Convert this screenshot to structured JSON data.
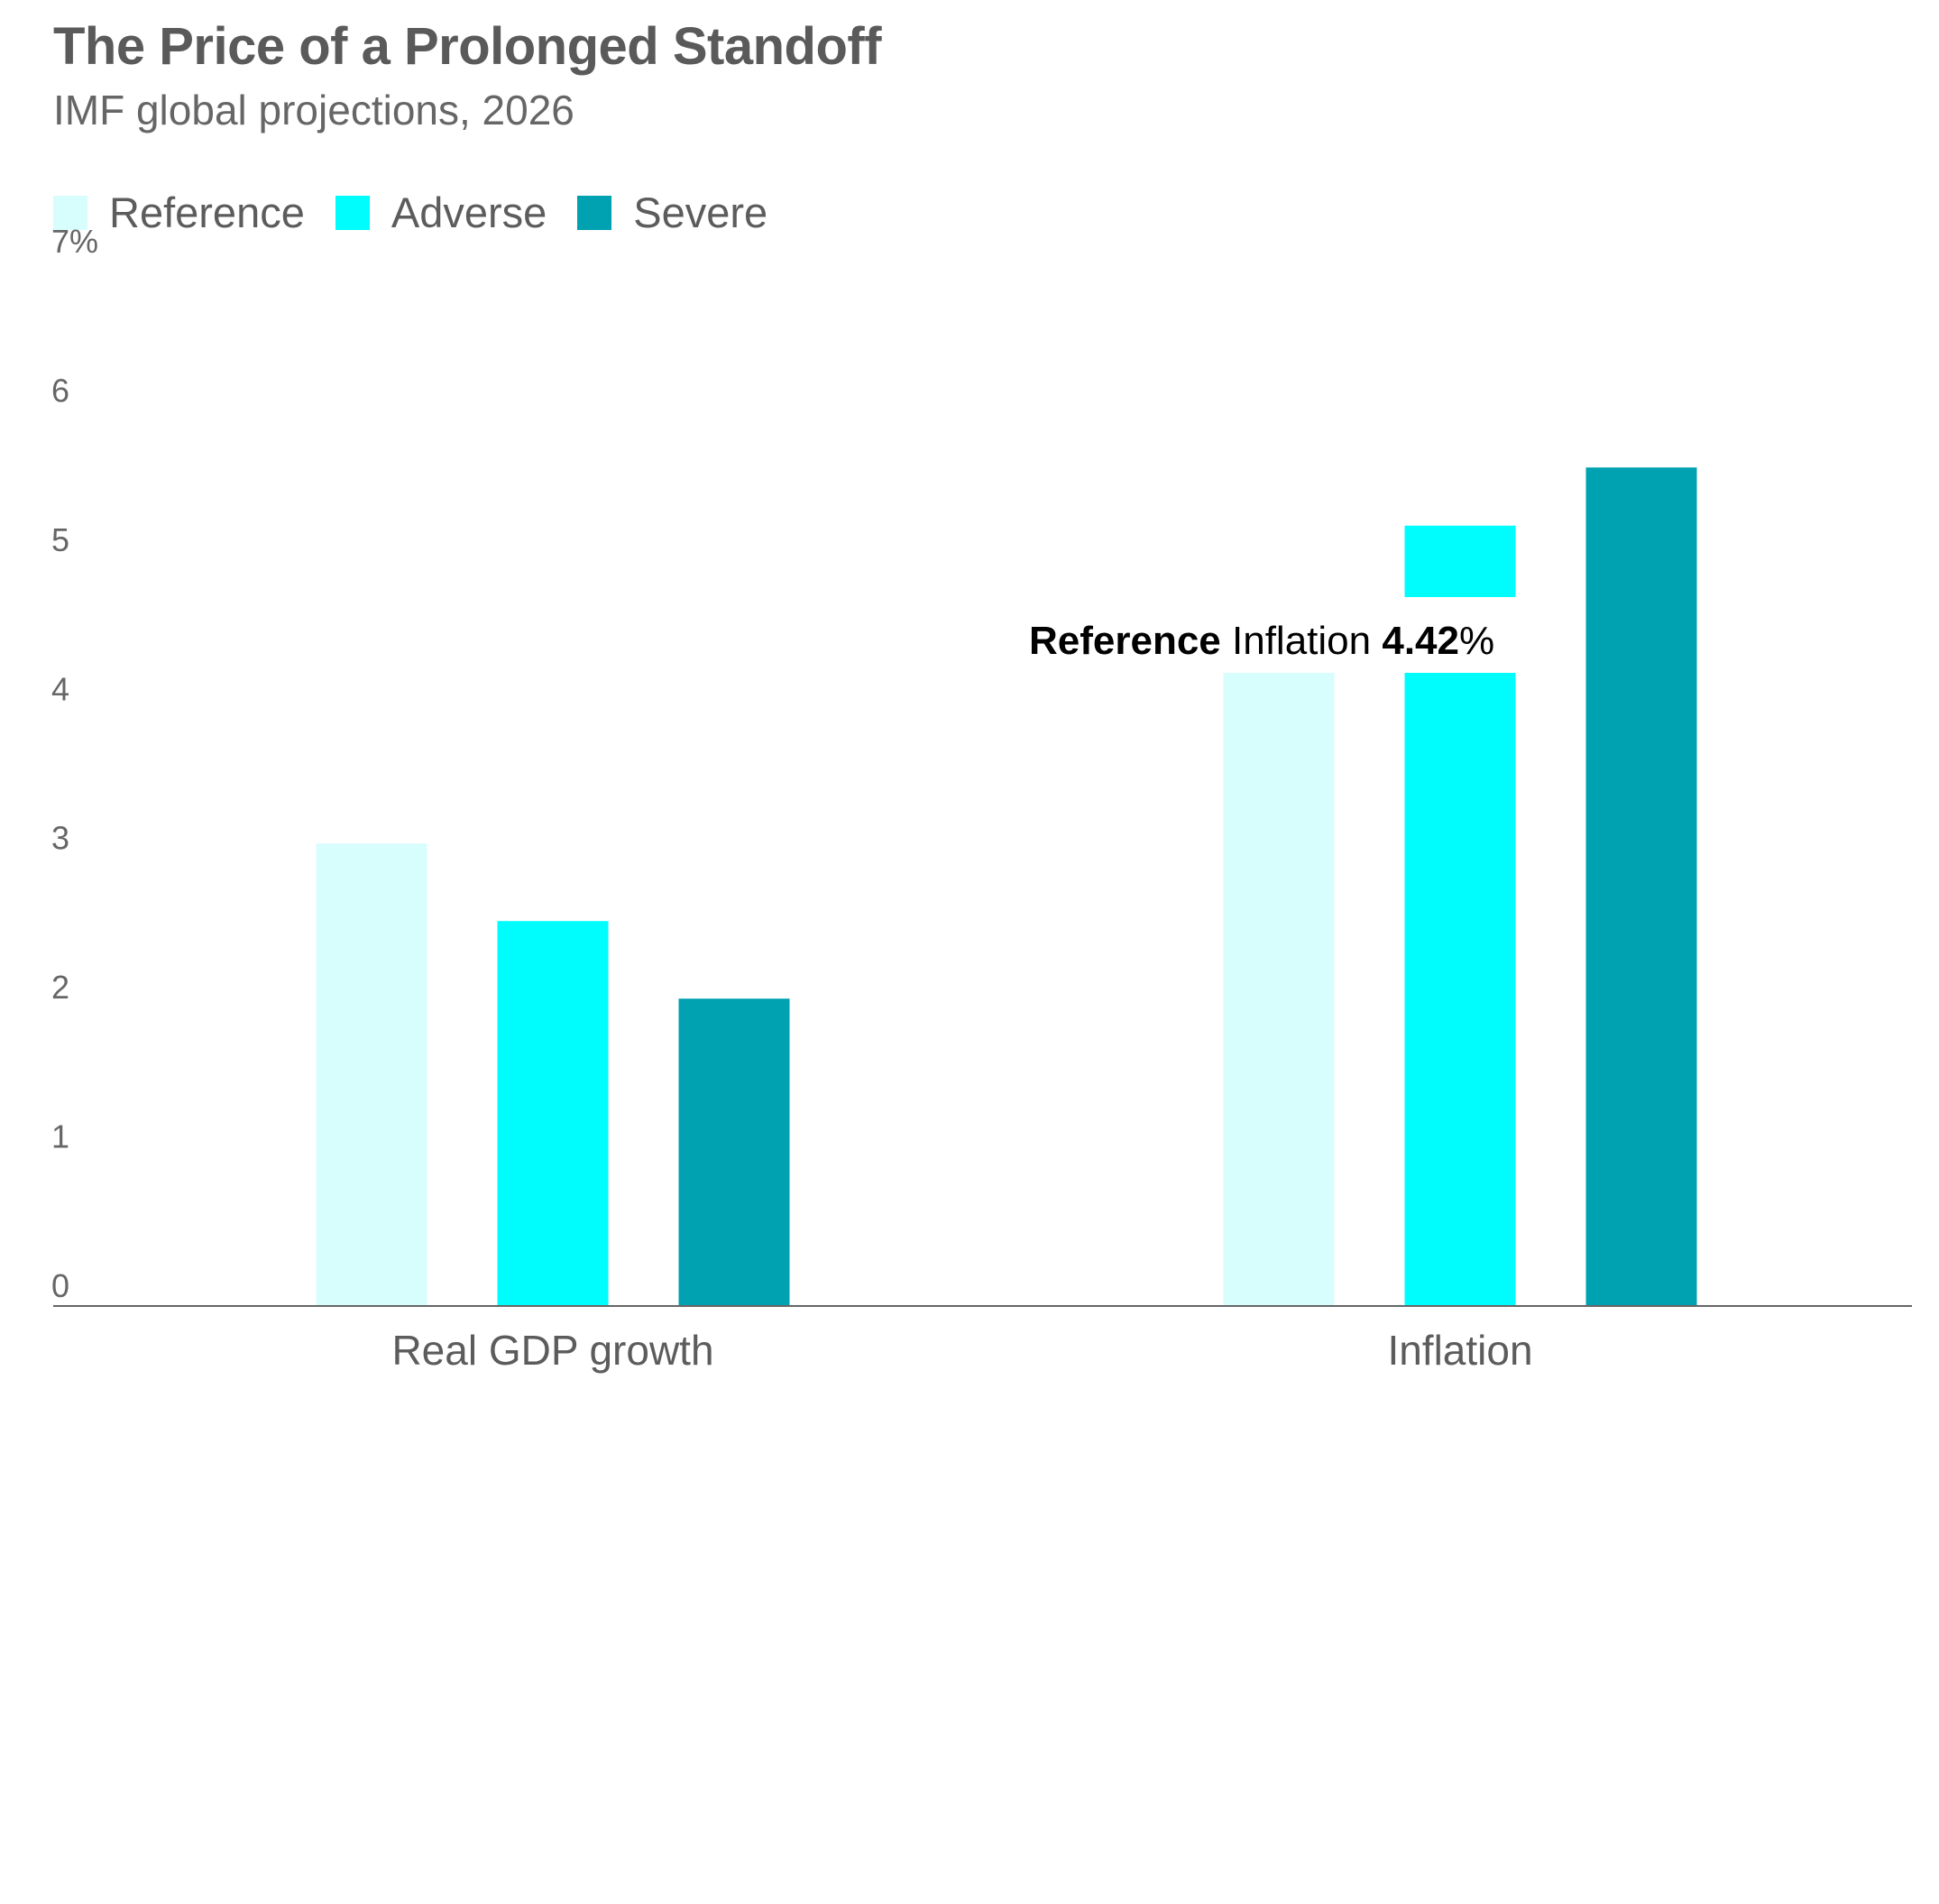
{
  "chart_data": {
    "type": "bar",
    "title": "The Price of a Prolonged Standoff",
    "subtitle": "IMF global projections, 2026",
    "categories": [
      "Real GDP growth",
      "Inflation"
    ],
    "series": [
      {
        "name": "Reference",
        "values": [
          3.1,
          4.42
        ],
        "color": "#d8fdfd"
      },
      {
        "name": "Adverse",
        "values": [
          2.58,
          5.23
        ],
        "color": "#00fdfd"
      },
      {
        "name": "Severe",
        "values": [
          2.06,
          5.62
        ],
        "color": "#00a1b1"
      }
    ],
    "ylim": [
      0,
      7
    ],
    "yticks": [
      0,
      1,
      2,
      3,
      4,
      5,
      6,
      7
    ],
    "ytick_labels": [
      "0",
      "1",
      "2",
      "3",
      "4",
      "5",
      "6",
      "7%"
    ],
    "xlabel": "",
    "ylabel": "",
    "grid": false,
    "legend_position": "top-left",
    "annotation": {
      "series_label": "Reference",
      "category_label": "Inflation",
      "value_label": "4.42",
      "unit": "%"
    }
  }
}
